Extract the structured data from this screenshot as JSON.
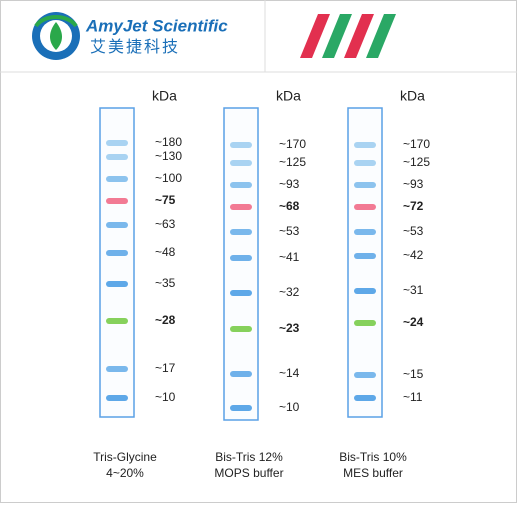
{
  "header": {
    "brand": "AmyJet Scientific",
    "brand_cn": "艾美捷科技"
  },
  "lanes": [
    {
      "unit": "kDa",
      "caption": [
        "Tris-Glycine",
        "4~20%"
      ],
      "bands": [
        {
          "label": "~180",
          "color": "#a9d3f2"
        },
        {
          "label": "~130",
          "color": "#a9d3f2"
        },
        {
          "label": "~100",
          "color": "#8cc3ee"
        },
        {
          "label": "~75",
          "color": "#f27a94",
          "bold": true
        },
        {
          "label": "~63",
          "color": "#7ab8ec"
        },
        {
          "label": "~48",
          "color": "#6fb1ea"
        },
        {
          "label": "~35",
          "color": "#5ea8e8"
        },
        {
          "label": "~28",
          "color": "#86d15c",
          "bold": true
        },
        {
          "label": "~17",
          "color": "#7ab8ec"
        },
        {
          "label": "~10",
          "color": "#5ea8e8"
        }
      ]
    },
    {
      "unit": "kDa",
      "caption": [
        "Bis-Tris 12%",
        "MOPS buffer"
      ],
      "bands": [
        {
          "label": "~170",
          "color": "#a9d3f2"
        },
        {
          "label": "~125",
          "color": "#a9d3f2"
        },
        {
          "label": "~93",
          "color": "#8cc3ee"
        },
        {
          "label": "~68",
          "color": "#f27a94",
          "bold": true
        },
        {
          "label": "~53",
          "color": "#7ab8ec"
        },
        {
          "label": "~41",
          "color": "#6fb1ea"
        },
        {
          "label": "~32",
          "color": "#5ea8e8"
        },
        {
          "label": "~23",
          "color": "#86d15c",
          "bold": true
        },
        {
          "label": "~14",
          "color": "#6fb1ea"
        },
        {
          "label": "~10",
          "color": "#5ea8e8"
        }
      ]
    },
    {
      "unit": "kDa",
      "caption": [
        "Bis-Tris 10%",
        "MES buffer"
      ],
      "bands": [
        {
          "label": "~170",
          "color": "#a9d3f2"
        },
        {
          "label": "~125",
          "color": "#a9d3f2"
        },
        {
          "label": "~93",
          "color": "#8cc3ee"
        },
        {
          "label": "~72",
          "color": "#f27a94",
          "bold": true
        },
        {
          "label": "~53",
          "color": "#7ab8ec"
        },
        {
          "label": "~42",
          "color": "#6fb1ea"
        },
        {
          "label": "~31",
          "color": "#5ea8e8"
        },
        {
          "label": "~24",
          "color": "#86d15c",
          "bold": true
        },
        {
          "label": "~15",
          "color": "#7ab8ec"
        },
        {
          "label": "~11",
          "color": "#5ea8e8"
        }
      ]
    }
  ]
}
